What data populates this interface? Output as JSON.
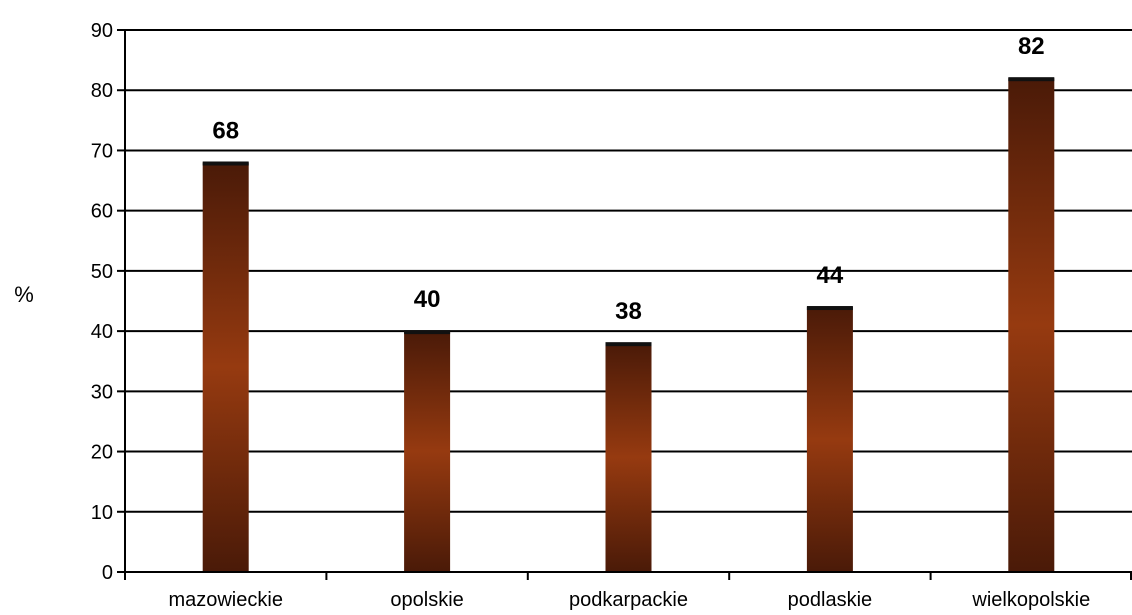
{
  "chart_data": {
    "type": "bar",
    "categories": [
      "mazowieckie",
      "opolskie",
      "podkarpackie",
      "podlaskie",
      "wielkopolskie"
    ],
    "values": [
      68,
      40,
      38,
      44,
      82
    ],
    "data_labels": [
      "68",
      "40",
      "38",
      "44",
      "82"
    ],
    "ylabel": "%",
    "xlabel": "",
    "ylim": [
      0,
      90
    ],
    "yticks": [
      0,
      10,
      20,
      30,
      40,
      50,
      60,
      70,
      80,
      90
    ],
    "ytick_labels": [
      "0",
      "10",
      "20",
      "30",
      "40",
      "50",
      "60",
      "70",
      "80",
      "90"
    ],
    "grid": "horizontal",
    "legend": "none",
    "colors": {
      "bar_dark": "#4a1a08",
      "bar_mid": "#963a10",
      "bar_top": "#111111",
      "grid": "#000000"
    }
  }
}
